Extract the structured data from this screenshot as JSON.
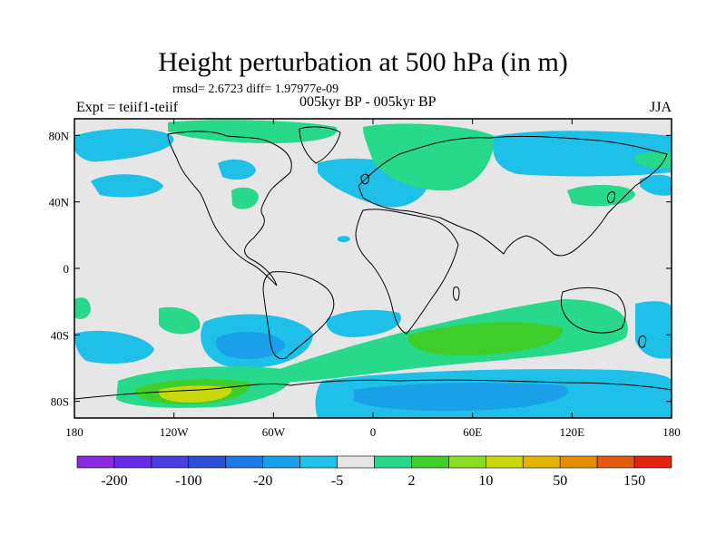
{
  "header": {
    "title": "Height perturbation at 500 hPa (in m)",
    "stats": "rmsd= 2.6723 diff= 1.97977e-09",
    "left_label": "Expt = teiif1-teiif",
    "center_label": "005kyr BP - 005kyr BP",
    "right_label": "JJA"
  },
  "map": {
    "projection": "cylindrical equidistant",
    "lon_range": [
      -180,
      180
    ],
    "lat_range": [
      -90,
      90
    ],
    "x_ticks": [
      {
        "lon": -180,
        "label": "180"
      },
      {
        "lon": -120,
        "label": "120W"
      },
      {
        "lon": -60,
        "label": "60W"
      },
      {
        "lon": 0,
        "label": "0"
      },
      {
        "lon": 60,
        "label": "60E"
      },
      {
        "lon": 120,
        "label": "120E"
      },
      {
        "lon": 180,
        "label": "180"
      }
    ],
    "y_ticks": [
      {
        "lat": 80,
        "label": "80N"
      },
      {
        "lat": 40,
        "label": "40N"
      },
      {
        "lat": 0,
        "label": "0"
      },
      {
        "lat": -40,
        "label": "40S"
      },
      {
        "lat": -80,
        "label": "80S"
      }
    ],
    "background_color": "#e6e6e6",
    "coastline_color": "#000000"
  },
  "colorbar": {
    "colors": [
      "#8a2be2",
      "#6a2be8",
      "#4b3de4",
      "#2b4fd8",
      "#1e78e6",
      "#1aa0e8",
      "#1ec0e8",
      "#e6e6e6",
      "#28d98c",
      "#3ecf2a",
      "#88de1e",
      "#c8d80e",
      "#e2b400",
      "#e48c00",
      "#e35a10",
      "#e32410"
    ],
    "labels": [
      "-200",
      "-100",
      "-20",
      "-5",
      "2",
      "10",
      "50",
      "150"
    ]
  },
  "chart_data": {
    "type": "heatmap",
    "variable": "Height perturbation at 500 hPa (in m)",
    "season": "JJA",
    "contour_levels": [
      -200,
      -150,
      -100,
      -50,
      -20,
      -10,
      -5,
      -2,
      2,
      5,
      10,
      20,
      50,
      100,
      150,
      200
    ],
    "regions": [
      {
        "level": "-5",
        "lon": [
          -175,
          -150
        ],
        "lat": [
          55,
          75
        ]
      },
      {
        "level": "-5",
        "lon": [
          -150,
          -120
        ],
        "lat": [
          42,
          58
        ]
      },
      {
        "level": "-5",
        "lon": [
          -40,
          -5
        ],
        "lat": [
          45,
          70
        ]
      },
      {
        "level": "-5",
        "lon": [
          10,
          60
        ],
        "lat": [
          50,
          70
        ]
      },
      {
        "level": "-5",
        "lon": [
          70,
          180
        ],
        "lat": [
          48,
          80
        ]
      },
      {
        "level": "2",
        "lon": [
          -60,
          -30
        ],
        "lat": [
          70,
          88
        ]
      },
      {
        "level": "5",
        "lon": [
          10,
          60
        ],
        "lat": [
          60,
          85
        ]
      },
      {
        "level": "2",
        "lon": [
          100,
          150
        ],
        "lat": [
          38,
          52
        ]
      },
      {
        "level": "-5",
        "lon": [
          -135,
          -70
        ],
        "lat": [
          -60,
          -30
        ]
      },
      {
        "level": "-20",
        "lon": [
          -110,
          -70
        ],
        "lat": [
          -55,
          -40
        ]
      },
      {
        "level": "-5",
        "lon": [
          -170,
          -140
        ],
        "lat": [
          -60,
          -35
        ]
      },
      {
        "level": "-5",
        "lon": [
          -30,
          30
        ],
        "lat": [
          -40,
          -25
        ]
      },
      {
        "level": "2",
        "lon": [
          -170,
          -150
        ],
        "lat": [
          -30,
          -15
        ]
      },
      {
        "level": "-5",
        "lon": [
          150,
          180
        ],
        "lat": [
          -60,
          -30
        ]
      },
      {
        "level": "5",
        "lon": [
          0,
          120
        ],
        "lat": [
          -55,
          -30
        ]
      },
      {
        "level": "10",
        "lon": [
          20,
          90
        ],
        "lat": [
          -50,
          -38
        ]
      },
      {
        "level": "5",
        "lon": [
          -150,
          0
        ],
        "lat": [
          -85,
          -60
        ]
      },
      {
        "level": "10",
        "lon": [
          -130,
          -90
        ],
        "lat": [
          -82,
          -65
        ]
      },
      {
        "level": "50",
        "lon": [
          -125,
          -105
        ],
        "lat": [
          -82,
          -72
        ]
      },
      {
        "level": "-5",
        "lon": [
          -30,
          150
        ],
        "lat": [
          -88,
          -60
        ]
      },
      {
        "level": "-20",
        "lon": [
          40,
          90
        ],
        "lat": [
          -80,
          -68
        ]
      }
    ]
  }
}
